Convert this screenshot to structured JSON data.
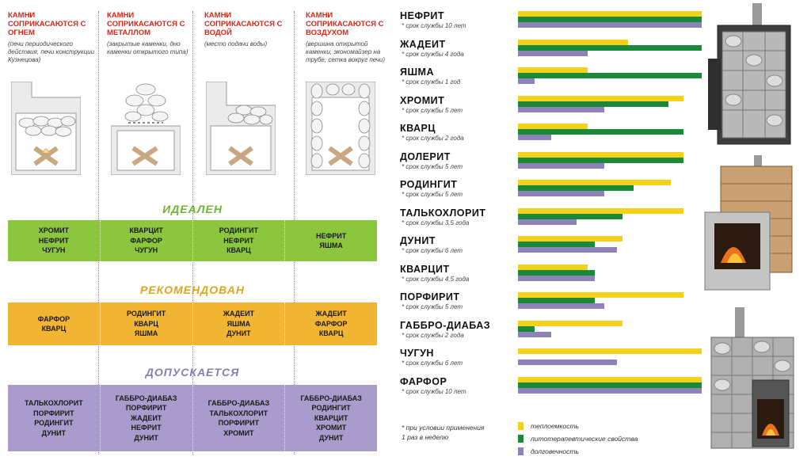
{
  "columns": [
    {
      "title": "КАМНИ СОПРИКАСАЮТСЯ С ОГНЕМ",
      "note": "(печи периодического действия, печи конструкции Кузнецова)"
    },
    {
      "title": "КАМНИ СОПРИКАСАЮТСЯ С МЕТАЛЛОМ",
      "note": "(закрытые каменки, дно каменки открытого типа)"
    },
    {
      "title": "КАМНИ СОПРИКАСАЮТСЯ С ВОДОЙ",
      "note": "(место подачи воды)"
    },
    {
      "title": "КАМНИ СОПРИКАСАЮТСЯ С ВОЗДУХОМ",
      "note": "(вершина открытой каменки, экономайзер на трубе, сетка вокруг печи)"
    }
  ],
  "categories": [
    {
      "title": "ИДЕАЛЕН",
      "title_color": "#6fb335",
      "band_color": "#8cc63f",
      "cells": [
        [
          "ХРОМИТ",
          "НЕФРИТ",
          "ЧУГУН"
        ],
        [
          "КВАРЦИТ",
          "ФАРФОР",
          "ЧУГУН"
        ],
        [
          "РОДИНГИТ",
          "НЕФРИТ",
          "КВАРЦ"
        ],
        [
          "НЕФРИТ",
          "ЯШМА"
        ]
      ]
    },
    {
      "title": "РЕКОМЕНДОВАН",
      "title_color": "#e2a41c",
      "band_color": "#f2b533",
      "cells": [
        [
          "ФАРФОР",
          "КВАРЦ"
        ],
        [
          "РОДИНГИТ",
          "КВАРЦ",
          "ЯШМА"
        ],
        [
          "ЖАДЕИТ",
          "ЯШМА",
          "ДУНИТ"
        ],
        [
          "ЖАДЕИТ",
          "ФАРФОР",
          "КВАРЦ"
        ]
      ]
    },
    {
      "title": "ДОПУСКАЕТСЯ",
      "title_color": "#8a7bb5",
      "band_color": "#a99bcc",
      "cells": [
        [
          "ТАЛЬКОХЛОРИТ",
          "ПОРФИРИТ",
          "РОДИНГИТ",
          "ДУНИТ"
        ],
        [
          "ГАББРО-ДИАБАЗ",
          "ПОРФИРИТ",
          "ЖАДЕИТ",
          "НЕФРИТ",
          "ДУНИТ"
        ],
        [
          "ГАББРО-ДИАБАЗ",
          "ТАЛЬКОХЛОРИТ",
          "ПОРФИРИТ",
          "ХРОМИТ"
        ],
        [
          "ГАББРО-ДИАБАЗ",
          "РОДИНГИТ",
          "КВАРЦИТ",
          "ХРОМИТ",
          "ДУНИТ"
        ]
      ]
    }
  ],
  "chart_data": {
    "type": "bar",
    "orientation": "horizontal",
    "categories": [
      "НЕФРИТ",
      "ЖАДЕИТ",
      "ЯШМА",
      "ХРОМИТ",
      "КВАРЦ",
      "ДОЛЕРИТ",
      "РОДИНГИТ",
      "ТАЛЬКОХЛОРИТ",
      "ДУНИТ",
      "КВАРЦИТ",
      "ПОРФИРИТ",
      "ГАББРО-ДИАБАЗ",
      "ЧУГУН",
      "ФАРФОР"
    ],
    "sublabels": [
      "* срок службы 10 лет",
      "* срок службы 4 года",
      "* срок службы 1 год",
      "* срок службы 5 лет",
      "* срок службы 2 года",
      "* срок службы 5 лет",
      "* срок службы 5 лет",
      "* срок службы 3,5 года",
      "* срок службы 6 лет",
      "* срок службы 4,5 года",
      "* срок службы 5 лет",
      "* срок службы 2 года",
      "* срок службы 6 лет",
      "* срок службы 10 лет"
    ],
    "series": [
      {
        "name": "теплоемкость",
        "color": "#f2d21a",
        "values": [
          10,
          6,
          3.8,
          9,
          3.8,
          9,
          8.3,
          9,
          5.7,
          3.8,
          9,
          5.7,
          10,
          10
        ]
      },
      {
        "name": "литотерапевтические свойства",
        "color": "#1a8a3a",
        "values": [
          10,
          10,
          10,
          8.2,
          9,
          9,
          6.3,
          5.7,
          4.2,
          4.2,
          4.2,
          0.9,
          0,
          10
        ]
      },
      {
        "name": "долговечность",
        "color": "#8e82b9",
        "values": [
          10,
          3.8,
          0.9,
          4.7,
          1.8,
          4.7,
          4.7,
          3.2,
          5.4,
          4.2,
          4.7,
          1.8,
          5.4,
          10
        ]
      }
    ],
    "xlim": [
      0,
      10
    ]
  },
  "legend": {
    "items": [
      {
        "label": "теплоемкость",
        "color": "#f2d21a"
      },
      {
        "label": "литотерапевтические свойства",
        "color": "#1a8a3a"
      },
      {
        "label": "долговечность",
        "color": "#8e82b9"
      }
    ]
  },
  "footnote": [
    "* при условии применения",
    "1 раз в неделю"
  ]
}
